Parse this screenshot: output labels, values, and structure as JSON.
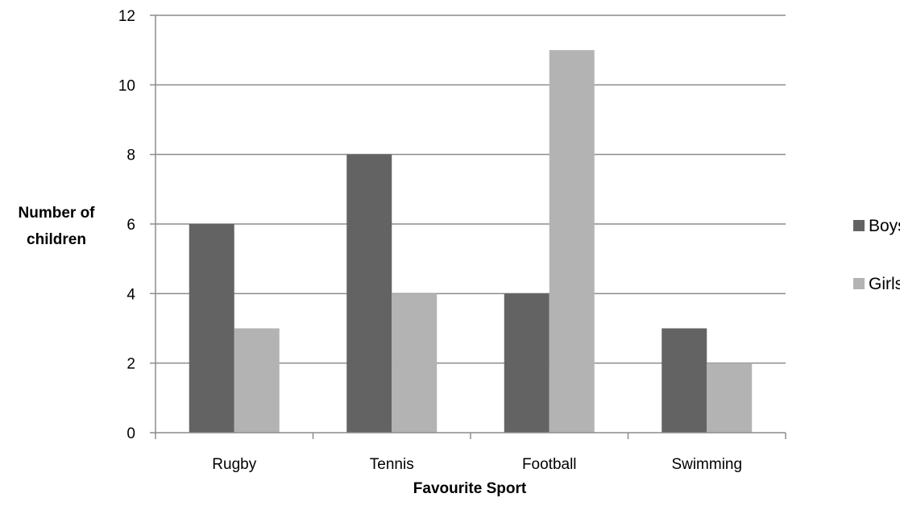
{
  "chart_data": {
    "type": "bar",
    "categories": [
      "Rugby",
      "Tennis",
      "Football",
      "Swimming"
    ],
    "series": [
      {
        "name": "Boys",
        "values": [
          6,
          8,
          4,
          3
        ],
        "color": "#636363"
      },
      {
        "name": "Girls",
        "values": [
          3,
          4,
          11,
          2
        ],
        "color": "#b3b3b3"
      }
    ],
    "xlabel": "Favourite Sport",
    "ylabel_lines": [
      "Number of",
      "children"
    ],
    "ylim": [
      0,
      12
    ],
    "yticks": [
      0,
      2,
      4,
      6,
      8,
      10,
      12
    ],
    "grid": true,
    "legend": "right",
    "gridline_color": "#8c8c8c",
    "axis_color": "#8c8c8c"
  }
}
